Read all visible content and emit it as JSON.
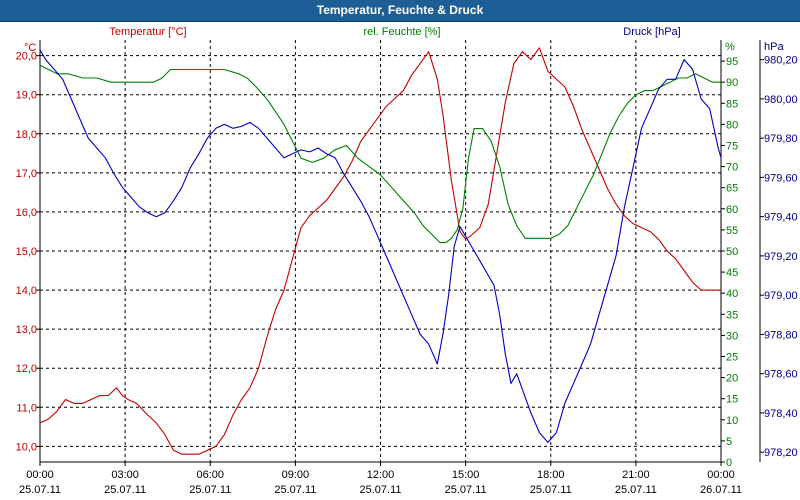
{
  "window": {
    "title": "Temperatur, Feuchte & Druck"
  },
  "colors": {
    "temperature": "#c00000",
    "humidity": "#008000",
    "pressure": "#0000c0",
    "title_bar": "#1e5e96",
    "grid": "#000000"
  },
  "chart_data": {
    "type": "line",
    "title": "Temperatur, Feuchte & Druck",
    "x_range": [
      0,
      24
    ],
    "x_ticks": [
      {
        "h": 0,
        "time": "00:00",
        "date": "25.07.11"
      },
      {
        "h": 3,
        "time": "03:00",
        "date": "25.07.11"
      },
      {
        "h": 6,
        "time": "06:00",
        "date": "25.07.11"
      },
      {
        "h": 9,
        "time": "09:00",
        "date": "25.07.11"
      },
      {
        "h": 12,
        "time": "12:00",
        "date": "25.07.11"
      },
      {
        "h": 15,
        "time": "15:00",
        "date": "25.07.11"
      },
      {
        "h": 18,
        "time": "18:00",
        "date": "25.07.11"
      },
      {
        "h": 21,
        "time": "21:00",
        "date": "25.07.11"
      },
      {
        "h": 24,
        "time": "00:00",
        "date": "26.07.11"
      }
    ],
    "grid": true,
    "axes": {
      "temperature": {
        "unit": "°C",
        "title": "Temperatur [°C]",
        "range": [
          9.6,
          20.4
        ],
        "ticks": [
          {
            "v": 10.0,
            "label": "10,0"
          },
          {
            "v": 11.0,
            "label": "11,0"
          },
          {
            "v": 12.0,
            "label": "12,0"
          },
          {
            "v": 13.0,
            "label": "13,0"
          },
          {
            "v": 14.0,
            "label": "14,0"
          },
          {
            "v": 15.0,
            "label": "15,0"
          },
          {
            "v": 16.0,
            "label": "16,0"
          },
          {
            "v": 17.0,
            "label": "17,0"
          },
          {
            "v": 18.0,
            "label": "18,0"
          },
          {
            "v": 19.0,
            "label": "19,0"
          },
          {
            "v": 20.0,
            "label": "20,0"
          }
        ]
      },
      "humidity": {
        "unit": "%",
        "title": "rel. Feuchte [%]",
        "range": [
          0,
          100
        ],
        "ticks": [
          {
            "v": 0,
            "label": "0"
          },
          {
            "v": 5,
            "label": "5"
          },
          {
            "v": 10,
            "label": "10"
          },
          {
            "v": 15,
            "label": "15"
          },
          {
            "v": 20,
            "label": "20"
          },
          {
            "v": 25,
            "label": "25"
          },
          {
            "v": 30,
            "label": "30"
          },
          {
            "v": 35,
            "label": "35"
          },
          {
            "v": 40,
            "label": "40"
          },
          {
            "v": 45,
            "label": "45"
          },
          {
            "v": 50,
            "label": "50"
          },
          {
            "v": 55,
            "label": "55"
          },
          {
            "v": 60,
            "label": "60"
          },
          {
            "v": 65,
            "label": "65"
          },
          {
            "v": 70,
            "label": "70"
          },
          {
            "v": 75,
            "label": "75"
          },
          {
            "v": 80,
            "label": "80"
          },
          {
            "v": 85,
            "label": "85"
          },
          {
            "v": 90,
            "label": "90"
          },
          {
            "v": 95,
            "label": "95"
          }
        ]
      },
      "pressure": {
        "unit": "hPa",
        "title": "Druck [hPa]",
        "range": [
          978.15,
          980.3
        ],
        "ticks": [
          {
            "v": 978.2,
            "label": "978,20"
          },
          {
            "v": 978.4,
            "label": "978,40"
          },
          {
            "v": 978.6,
            "label": "978,60"
          },
          {
            "v": 978.8,
            "label": "978,80"
          },
          {
            "v": 979.0,
            "label": "979,00"
          },
          {
            "v": 979.2,
            "label": "979,20"
          },
          {
            "v": 979.4,
            "label": "979,40"
          },
          {
            "v": 979.6,
            "label": "979,60"
          },
          {
            "v": 979.8,
            "label": "979,80"
          },
          {
            "v": 980.0,
            "label": "980,00"
          },
          {
            "v": 980.2,
            "label": "980,20"
          }
        ]
      }
    },
    "series": [
      {
        "name": "Temperatur [°C]",
        "axis": "temperature",
        "color": "#c00000",
        "x": [
          0,
          0.3,
          0.6,
          0.9,
          1.2,
          1.5,
          1.8,
          2.1,
          2.4,
          2.7,
          2.9,
          3.1,
          3.4,
          3.8,
          4.1,
          4.4,
          4.7,
          5.0,
          5.3,
          5.6,
          5.9,
          6.2,
          6.5,
          6.8,
          7.1,
          7.4,
          7.7,
          8.0,
          8.3,
          8.6,
          8.9,
          9.2,
          9.5,
          9.8,
          10.1,
          10.4,
          10.7,
          11.0,
          11.3,
          11.6,
          11.9,
          12.2,
          12.5,
          12.8,
          13.1,
          13.4,
          13.7,
          14.0,
          14.2,
          14.5,
          14.8,
          15.0,
          15.2,
          15.5,
          15.8,
          16.1,
          16.4,
          16.7,
          17.0,
          17.3,
          17.6,
          17.9,
          18.2,
          18.5,
          18.8,
          19.1,
          19.4,
          19.7,
          20.0,
          20.3,
          20.6,
          20.9,
          21.2,
          21.5,
          21.8,
          22.1,
          22.4,
          22.7,
          23.0,
          23.3,
          23.6,
          24.0
        ],
        "y": [
          10.6,
          10.7,
          10.9,
          11.2,
          11.1,
          11.1,
          11.2,
          11.3,
          11.3,
          11.5,
          11.3,
          11.2,
          11.1,
          10.8,
          10.6,
          10.3,
          9.9,
          9.8,
          9.8,
          9.8,
          9.9,
          10.0,
          10.3,
          10.8,
          11.2,
          11.5,
          12.0,
          12.8,
          13.5,
          14.0,
          14.8,
          15.6,
          15.9,
          16.1,
          16.3,
          16.6,
          16.9,
          17.3,
          17.8,
          18.1,
          18.4,
          18.7,
          18.9,
          19.1,
          19.5,
          19.8,
          20.1,
          19.4,
          18.5,
          16.8,
          15.5,
          15.3,
          15.4,
          15.6,
          16.2,
          17.5,
          18.8,
          19.8,
          20.1,
          19.9,
          20.2,
          19.6,
          19.4,
          19.2,
          18.7,
          18.1,
          17.6,
          17.1,
          16.6,
          16.2,
          15.9,
          15.7,
          15.6,
          15.5,
          15.3,
          15.0,
          14.8,
          14.5,
          14.2,
          14.0,
          14.0,
          14.0
        ]
      },
      {
        "name": "rel. Feuchte [%]",
        "axis": "humidity",
        "color": "#008000",
        "x": [
          0,
          0.3,
          0.6,
          1.0,
          1.5,
          2.0,
          2.5,
          3.0,
          3.5,
          4.0,
          4.3,
          4.6,
          5.0,
          5.5,
          6.0,
          6.5,
          7.0,
          7.3,
          7.6,
          8.0,
          8.3,
          8.6,
          8.9,
          9.2,
          9.6,
          10.0,
          10.4,
          10.8,
          11.2,
          11.6,
          12.0,
          12.4,
          12.8,
          13.2,
          13.5,
          13.8,
          14.1,
          14.3,
          14.5,
          14.7,
          14.9,
          15.1,
          15.3,
          15.6,
          15.9,
          16.2,
          16.5,
          16.8,
          17.1,
          17.4,
          17.7,
          18.0,
          18.3,
          18.6,
          18.9,
          19.2,
          19.5,
          19.8,
          20.1,
          20.4,
          20.7,
          21.0,
          21.3,
          21.6,
          21.9,
          22.2,
          22.5,
          22.8,
          23.1,
          23.4,
          23.7,
          24.0
        ],
        "y": [
          94,
          93,
          92,
          92,
          91,
          91,
          90,
          90,
          90,
          90,
          91,
          93,
          93,
          93,
          93,
          93,
          92,
          91,
          89,
          86,
          83,
          80,
          76,
          72,
          71,
          72,
          74,
          75,
          72,
          70,
          68,
          65,
          62,
          59,
          56,
          54,
          52,
          52,
          53,
          55,
          60,
          72,
          79,
          79,
          76,
          70,
          61,
          56,
          53,
          53,
          53,
          53,
          54,
          56,
          60,
          64,
          68,
          73,
          78,
          82,
          85,
          87,
          88,
          88,
          89,
          90,
          91,
          91,
          92,
          91,
          90,
          90
        ]
      },
      {
        "name": "Druck [hPa]",
        "axis": "pressure",
        "color": "#0000c0",
        "x": [
          0,
          0.2,
          0.5,
          0.8,
          1.1,
          1.4,
          1.7,
          2.0,
          2.3,
          2.6,
          2.9,
          3.2,
          3.5,
          3.8,
          4.1,
          4.4,
          4.7,
          5.0,
          5.3,
          5.6,
          5.9,
          6.2,
          6.5,
          6.8,
          7.1,
          7.4,
          7.7,
          8.0,
          8.3,
          8.6,
          8.9,
          9.2,
          9.5,
          9.8,
          10.1,
          10.4,
          10.7,
          11.0,
          11.3,
          11.6,
          11.9,
          12.2,
          12.5,
          12.8,
          13.1,
          13.4,
          13.7,
          14.0,
          14.2,
          14.4,
          14.6,
          14.8,
          15.0,
          15.2,
          15.4,
          15.6,
          15.8,
          16.0,
          16.2,
          16.4,
          16.6,
          16.8,
          17.0,
          17.3,
          17.6,
          17.9,
          18.2,
          18.5,
          18.8,
          19.1,
          19.4,
          19.7,
          20.0,
          20.3,
          20.6,
          20.9,
          21.2,
          21.5,
          21.8,
          22.1,
          22.4,
          22.7,
          23.0,
          23.3,
          23.6,
          23.9,
          24.0
        ],
        "y": [
          980.25,
          980.2,
          980.15,
          980.1,
          980.0,
          979.9,
          979.8,
          979.75,
          979.7,
          979.62,
          979.55,
          979.5,
          979.45,
          979.42,
          979.4,
          979.42,
          979.48,
          979.55,
          979.65,
          979.72,
          979.8,
          979.85,
          979.87,
          979.85,
          979.86,
          979.88,
          979.85,
          979.8,
          979.75,
          979.7,
          979.72,
          979.74,
          979.73,
          979.75,
          979.72,
          979.7,
          979.62,
          979.55,
          979.48,
          979.4,
          979.3,
          979.2,
          979.1,
          979.0,
          978.9,
          978.8,
          978.75,
          978.65,
          978.8,
          979.0,
          979.25,
          979.35,
          979.3,
          979.25,
          979.2,
          979.15,
          979.1,
          979.05,
          978.9,
          978.7,
          978.55,
          978.6,
          978.52,
          978.4,
          978.3,
          978.25,
          978.3,
          978.45,
          978.55,
          978.65,
          978.75,
          978.9,
          979.05,
          979.2,
          979.45,
          979.65,
          979.85,
          979.95,
          980.05,
          980.1,
          980.1,
          980.2,
          980.15,
          980.0,
          979.95,
          979.75,
          979.7
        ]
      }
    ]
  }
}
